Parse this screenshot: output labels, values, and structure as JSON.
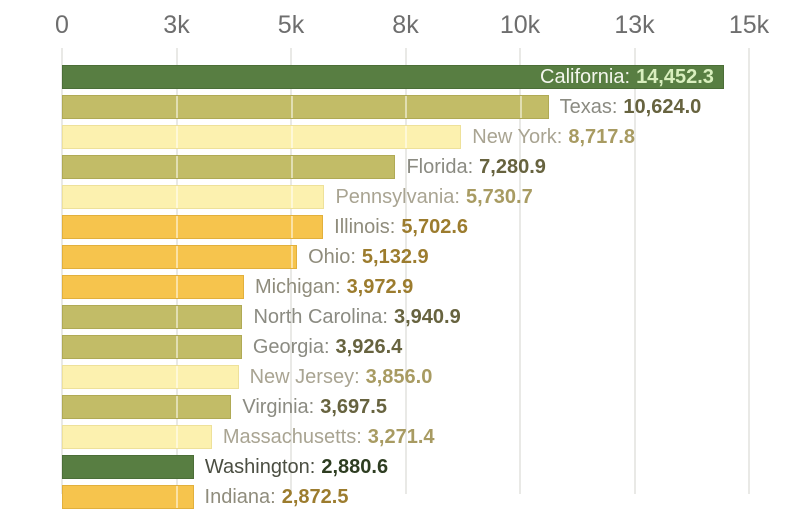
{
  "chart_data": {
    "type": "bar",
    "orientation": "horizontal",
    "title": "",
    "xlabel": "",
    "ylabel": "",
    "legend": false,
    "grid": true,
    "axis": {
      "min": 0,
      "max": 15000,
      "position": "top",
      "ticks": [
        {
          "label": "0",
          "value": 0
        },
        {
          "label": "3k",
          "value": 2500
        },
        {
          "label": "5k",
          "value": 5000
        },
        {
          "label": "8k",
          "value": 7500
        },
        {
          "label": "10k",
          "value": 10000
        },
        {
          "label": "13k",
          "value": 12500
        },
        {
          "label": "15k",
          "value": 15000
        }
      ]
    },
    "rows": [
      {
        "state": "California",
        "name_label": "California:",
        "value": 14452.3,
        "value_label": "14,452.3",
        "family": "green",
        "label_inside": true
      },
      {
        "state": "Texas",
        "name_label": "Texas:",
        "value": 10624.0,
        "value_label": "10,624.0",
        "family": "olive",
        "label_inside": false
      },
      {
        "state": "New York",
        "name_label": "New York:",
        "value": 8717.8,
        "value_label": "8,717.8",
        "family": "pale",
        "label_inside": false
      },
      {
        "state": "Florida",
        "name_label": "Florida:",
        "value": 7280.9,
        "value_label": "7,280.9",
        "family": "olive",
        "label_inside": false
      },
      {
        "state": "Pennsylvania",
        "name_label": "Pennsylvania:",
        "value": 5730.7,
        "value_label": "5,730.7",
        "family": "pale",
        "label_inside": false
      },
      {
        "state": "Illinois",
        "name_label": "Illinois:",
        "value": 5702.6,
        "value_label": "5,702.6",
        "family": "amber",
        "label_inside": false
      },
      {
        "state": "Ohio",
        "name_label": "Ohio:",
        "value": 5132.9,
        "value_label": "5,132.9",
        "family": "amber",
        "label_inside": false
      },
      {
        "state": "Michigan",
        "name_label": "Michigan:",
        "value": 3972.9,
        "value_label": "3,972.9",
        "family": "amber",
        "label_inside": false
      },
      {
        "state": "North Carolina",
        "name_label": "North Carolina:",
        "value": 3940.9,
        "value_label": "3,940.9",
        "family": "olive",
        "label_inside": false
      },
      {
        "state": "Georgia",
        "name_label": "Georgia:",
        "value": 3926.4,
        "value_label": "3,926.4",
        "family": "olive",
        "label_inside": false
      },
      {
        "state": "New Jersey",
        "name_label": "New Jersey:",
        "value": 3856.0,
        "value_label": "3,856.0",
        "family": "pale",
        "label_inside": false
      },
      {
        "state": "Virginia",
        "name_label": "Virginia:",
        "value": 3697.5,
        "value_label": "3,697.5",
        "family": "olive",
        "label_inside": false
      },
      {
        "state": "Massachusetts",
        "name_label": "Massachusetts:",
        "value": 3271.4,
        "value_label": "3,271.4",
        "family": "pale",
        "label_inside": false
      },
      {
        "state": "Washington",
        "name_label": "Washington:",
        "value": 2880.6,
        "value_label": "2,880.6",
        "family": "green",
        "label_inside": false
      },
      {
        "state": "Indiana",
        "name_label": "Indiana:",
        "value": 2872.5,
        "value_label": "2,872.5",
        "family": "amber",
        "label_inside": false
      }
    ],
    "palette": {
      "green": {
        "bar": "#587e42",
        "border": "#4b6e37",
        "name": "#4b4e42",
        "value": "#2e3d21",
        "inside_name": "#f3f6ed",
        "inside_value": "#d9efbe"
      },
      "olive": {
        "bar": "#c2bc67",
        "border": "#b0aa55",
        "name": "#8b8b82",
        "value": "#67633f"
      },
      "pale": {
        "bar": "#fcf1af",
        "border": "#eee19a",
        "name": "#a9a492",
        "value": "#a89b62"
      },
      "amber": {
        "bar": "#f6c44d",
        "border": "#e2b03c",
        "name": "#8f8c7c",
        "value": "#9c7c2e"
      }
    },
    "style": {
      "axis_text_color": "#6e6e6e",
      "gridline_color": "#e9e9e6",
      "background": "#ffffff"
    }
  }
}
